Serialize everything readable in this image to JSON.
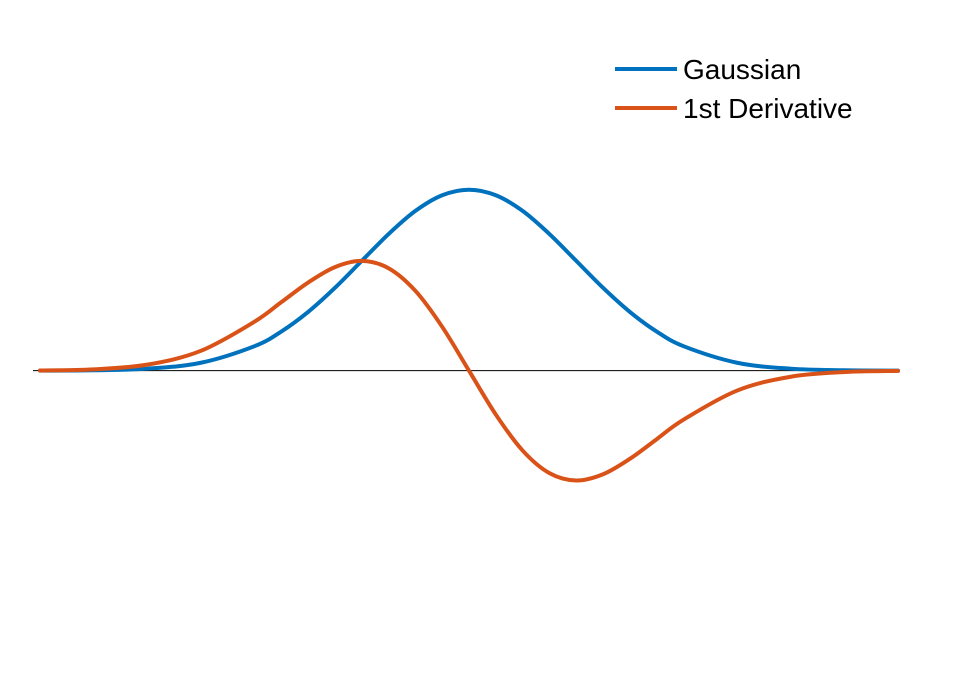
{
  "chart_data": {
    "type": "line",
    "title": "",
    "xlabel": "",
    "ylabel": "",
    "xlim": [
      -4,
      4
    ],
    "ylim": [
      -0.62,
      0.72
    ],
    "axes_visible": false,
    "grid": false,
    "zero_line": true,
    "legend_position": "top-right",
    "series": [
      {
        "name": "Gaussian",
        "color": "#0072BD",
        "x": [
          -4.0,
          -3.5,
          -3.0,
          -2.5,
          -2.0,
          -1.75,
          -1.5,
          -1.25,
          -1.0,
          -0.75,
          -0.5,
          -0.25,
          0.0,
          0.25,
          0.5,
          0.75,
          1.0,
          1.25,
          1.5,
          1.75,
          2.0,
          2.5,
          3.0,
          3.5,
          4.0
        ],
        "y": [
          0.0001,
          0.0009,
          0.0044,
          0.0175,
          0.054,
          0.0863,
          0.1295,
          0.1826,
          0.242,
          0.3011,
          0.3521,
          0.3867,
          0.3989,
          0.3867,
          0.3521,
          0.3011,
          0.242,
          0.1826,
          0.1295,
          0.0863,
          0.054,
          0.0175,
          0.0044,
          0.0009,
          0.0001
        ]
      },
      {
        "name": "1st Derivative",
        "color": "#D95319",
        "x": [
          -4.0,
          -3.5,
          -3.0,
          -2.5,
          -2.0,
          -1.75,
          -1.5,
          -1.25,
          -1.0,
          -0.75,
          -0.5,
          -0.25,
          0.0,
          0.25,
          0.5,
          0.75,
          1.0,
          1.25,
          1.5,
          1.75,
          2.0,
          2.5,
          3.0,
          3.5,
          4.0
        ],
        "y": [
          0.0005,
          0.003,
          0.0133,
          0.0438,
          0.108,
          0.151,
          0.1943,
          0.2283,
          0.242,
          0.2258,
          0.176,
          0.0967,
          0.0,
          -0.0967,
          -0.176,
          -0.2258,
          -0.242,
          -0.2283,
          -0.1943,
          -0.151,
          -0.108,
          -0.0438,
          -0.0133,
          -0.003,
          -0.0005
        ]
      }
    ]
  }
}
